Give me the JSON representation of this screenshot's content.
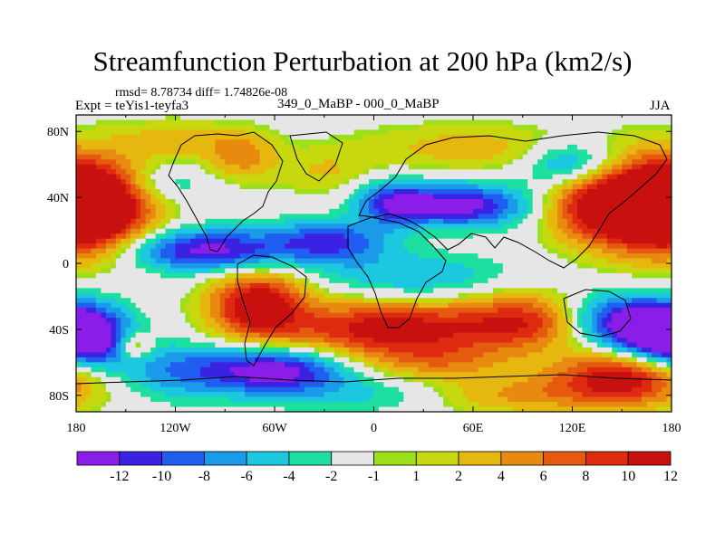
{
  "title": "Streamfunction Perturbation at 200 hPa (km2/s)",
  "stats_line": "rmsd= 8.78734 diff= 1.74826e-08",
  "experiment": "Expt = teYis1-teyfa3",
  "case_label": "349_0_MaBP - 000_0_MaBP",
  "season": "JJA",
  "chart_data": {
    "type": "heatmap",
    "title": "Streamfunction Perturbation at 200 hPa (km2/s)",
    "x_ticks": [
      {
        "value": -180,
        "label": "180"
      },
      {
        "value": -120,
        "label": "120W"
      },
      {
        "value": -60,
        "label": "60W"
      },
      {
        "value": 0,
        "label": "0"
      },
      {
        "value": 60,
        "label": "60E"
      },
      {
        "value": 120,
        "label": "120E"
      },
      {
        "value": 180,
        "label": "180"
      }
    ],
    "y_ticks": [
      {
        "value": 80,
        "label": "80N"
      },
      {
        "value": 40,
        "label": "40N"
      },
      {
        "value": 0,
        "label": "0"
      },
      {
        "value": -40,
        "label": "40S"
      },
      {
        "value": -80,
        "label": "80S"
      }
    ],
    "xlim": [
      -180,
      180
    ],
    "ylim": [
      -90,
      90
    ],
    "levels": [
      -12,
      -10,
      -8,
      -6,
      -4,
      -2,
      -1,
      1,
      2,
      4,
      6,
      8,
      10,
      12
    ],
    "level_labels": [
      "-12",
      "-10",
      "-8",
      "-6",
      "-4",
      "-2",
      "-1",
      "1",
      "2",
      "4",
      "6",
      "8",
      "10",
      "12"
    ],
    "colors": [
      "#8a1ee8",
      "#3a22e2",
      "#1f5ef0",
      "#1a9ae8",
      "#1cc8e0",
      "#1ddfa2",
      "#e6e6e6",
      "#9be01a",
      "#c7d80f",
      "#e6b70e",
      "#e88a10",
      "#e65a10",
      "#de2b10",
      "#c8100e"
    ],
    "field_centers": [
      {
        "lon": -170,
        "lat": 35,
        "value": 14,
        "sx": 25,
        "sy": 18
      },
      {
        "lon": 170,
        "lat": 35,
        "value": 14,
        "sx": 28,
        "sy": 20
      },
      {
        "lon": 135,
        "lat": 35,
        "value": 10,
        "sx": 22,
        "sy": 15
      },
      {
        "lon": -80,
        "lat": 65,
        "value": 6,
        "sx": 15,
        "sy": 10
      },
      {
        "lon": -120,
        "lat": 75,
        "value": 4,
        "sx": 25,
        "sy": 8
      },
      {
        "lon": -30,
        "lat": 55,
        "value": 3,
        "sx": 20,
        "sy": 10
      },
      {
        "lon": 60,
        "lat": 70,
        "value": 4,
        "sx": 50,
        "sy": 10
      },
      {
        "lon": -5,
        "lat": 25,
        "value": 3,
        "sx": 30,
        "sy": 8
      },
      {
        "lon": -130,
        "lat": 48,
        "value": -4,
        "sx": 20,
        "sy": 8
      },
      {
        "lon": 120,
        "lat": 60,
        "value": -8,
        "sx": 20,
        "sy": 10
      },
      {
        "lon": -100,
        "lat": 8,
        "value": -12,
        "sx": 35,
        "sy": 9
      },
      {
        "lon": -25,
        "lat": 15,
        "value": -10,
        "sx": 25,
        "sy": 10
      },
      {
        "lon": 50,
        "lat": 35,
        "value": -13,
        "sx": 30,
        "sy": 9
      },
      {
        "lon": 10,
        "lat": 35,
        "value": -8,
        "sx": 15,
        "sy": 10
      },
      {
        "lon": 25,
        "lat": -8,
        "value": -5,
        "sx": 40,
        "sy": 10
      },
      {
        "lon": -70,
        "lat": -25,
        "value": 14,
        "sx": 20,
        "sy": 14
      },
      {
        "lon": 10,
        "lat": -40,
        "value": 13,
        "sx": 45,
        "sy": 12
      },
      {
        "lon": 90,
        "lat": -35,
        "value": 9,
        "sx": 25,
        "sy": 12
      },
      {
        "lon": 150,
        "lat": -70,
        "value": 13,
        "sx": 30,
        "sy": 12
      },
      {
        "lon": 80,
        "lat": -80,
        "value": 5,
        "sx": 35,
        "sy": 8
      },
      {
        "lon": -170,
        "lat": -45,
        "value": -12,
        "sx": 18,
        "sy": 14
      },
      {
        "lon": 170,
        "lat": -42,
        "value": -12,
        "sx": 18,
        "sy": 12
      },
      {
        "lon": 145,
        "lat": -35,
        "value": -9,
        "sx": 20,
        "sy": 12
      },
      {
        "lon": -60,
        "lat": -65,
        "value": -13,
        "sx": 30,
        "sy": 10
      },
      {
        "lon": -120,
        "lat": -65,
        "value": -6,
        "sx": 25,
        "sy": 12
      },
      {
        "lon": -145,
        "lat": -50,
        "value": 7,
        "sx": 8,
        "sy": 6
      },
      {
        "lon": 40,
        "lat": -60,
        "value": 5,
        "sx": 30,
        "sy": 8
      },
      {
        "lon": 0,
        "lat": -80,
        "value": -3,
        "sx": 40,
        "sy": 8
      }
    ]
  }
}
